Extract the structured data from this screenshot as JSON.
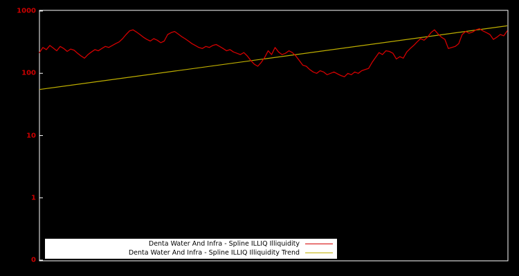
{
  "chart_data": {
    "type": "line",
    "title": "",
    "background": "#000000",
    "border_color": "#ffffff",
    "y_axis": {
      "label": "",
      "scale": "log",
      "tick_labels": [
        "1000",
        "100",
        "10",
        "1",
        "0"
      ],
      "tick_color": "#cc0000",
      "range_top": 1000,
      "range_bottom": 0.1
    },
    "x_axis": {
      "label": "",
      "tick_labels": []
    },
    "series": [
      {
        "name": "Denta Water And Infra - Spline ILLIQ Illiquidity",
        "color": "#d40000",
        "values": [
          215,
          260,
          240,
          280,
          255,
          230,
          270,
          250,
          225,
          245,
          235,
          210,
          190,
          175,
          200,
          220,
          240,
          230,
          250,
          270,
          260,
          280,
          300,
          320,
          360,
          420,
          480,
          500,
          460,
          420,
          380,
          350,
          330,
          360,
          340,
          310,
          330,
          420,
          450,
          470,
          430,
          390,
          360,
          330,
          300,
          280,
          260,
          250,
          270,
          260,
          280,
          290,
          270,
          250,
          230,
          240,
          220,
          210,
          200,
          215,
          190,
          160,
          140,
          130,
          150,
          180,
          230,
          200,
          260,
          220,
          200,
          210,
          230,
          215,
          190,
          160,
          135,
          130,
          115,
          105,
          100,
          110,
          105,
          95,
          100,
          105,
          98,
          92,
          88,
          100,
          95,
          105,
          100,
          110,
          115,
          120,
          150,
          180,
          215,
          200,
          230,
          225,
          210,
          170,
          185,
          175,
          220,
          250,
          280,
          320,
          360,
          340,
          380,
          450,
          500,
          430,
          380,
          350,
          250,
          260,
          270,
          300,
          420,
          470,
          440,
          460,
          500,
          520,
          480,
          450,
          420,
          350,
          380,
          420,
          400,
          480
        ]
      }
    ],
    "trend": {
      "name": "Denta Water And Infra - Spline ILLIQ Illiquidity Trend",
      "color": "#c0b000",
      "start_value": 55,
      "end_value": 580
    },
    "legend": {
      "position": "bottom-center",
      "background": "#ffffff",
      "items": [
        {
          "label": "Denta Water And Infra - Spline ILLIQ Illiquidity",
          "color": "#d40000"
        },
        {
          "label": "Denta Water And Infra - Spline ILLIQ Illiquidity Trend",
          "color": "#c0b000"
        }
      ]
    }
  }
}
